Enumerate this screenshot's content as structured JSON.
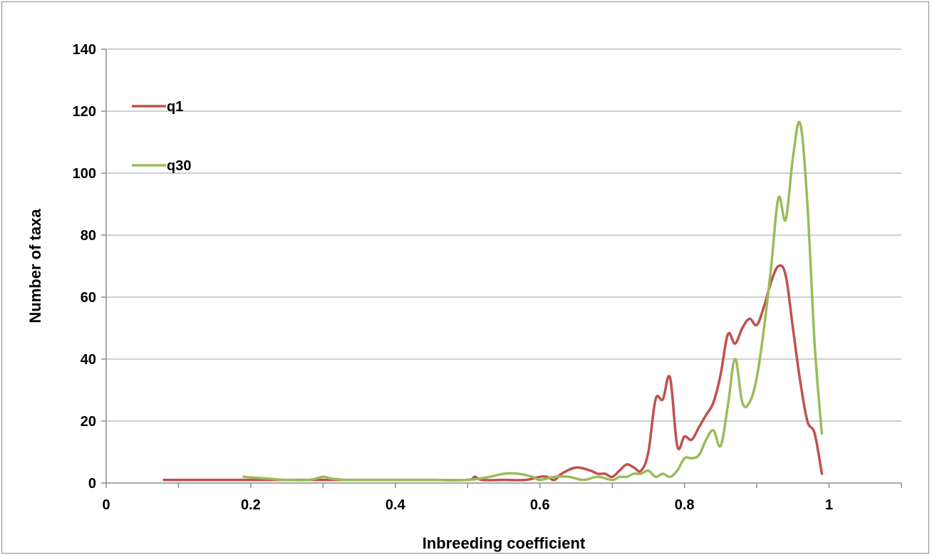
{
  "chart_data": {
    "type": "line",
    "title": "",
    "xlabel": "Inbreeding coefficient",
    "ylabel": "Number of taxa",
    "xlim": [
      0,
      1.1
    ],
    "ylim": [
      0,
      140
    ],
    "x_ticks": [
      0,
      0.2,
      0.4,
      0.6,
      0.8,
      1
    ],
    "x_tick_labels": [
      "0",
      "0.2",
      "0.4",
      "0.6",
      "0.8",
      "1"
    ],
    "y_ticks": [
      0,
      20,
      40,
      60,
      80,
      100,
      120,
      140
    ],
    "y_tick_labels": [
      "0",
      "20",
      "40",
      "60",
      "80",
      "100",
      "120",
      "140"
    ],
    "grid": "horizontal",
    "legend_position": "top-left",
    "series": [
      {
        "name": "q1",
        "color": "#c0504d",
        "x": [
          0.08,
          0.1,
          0.15,
          0.2,
          0.25,
          0.3,
          0.32,
          0.35,
          0.4,
          0.45,
          0.5,
          0.51,
          0.52,
          0.55,
          0.58,
          0.6,
          0.61,
          0.62,
          0.63,
          0.65,
          0.67,
          0.68,
          0.69,
          0.7,
          0.71,
          0.72,
          0.73,
          0.74,
          0.75,
          0.76,
          0.77,
          0.78,
          0.79,
          0.8,
          0.81,
          0.82,
          0.83,
          0.84,
          0.85,
          0.86,
          0.87,
          0.88,
          0.89,
          0.9,
          0.91,
          0.92,
          0.93,
          0.94,
          0.95,
          0.96,
          0.97,
          0.98,
          0.99
        ],
        "y": [
          1,
          1,
          1,
          1,
          1,
          1,
          1,
          1,
          1,
          1,
          1,
          2,
          1,
          1,
          1,
          2,
          2,
          1,
          3,
          5,
          4,
          3,
          3,
          2,
          4,
          6,
          5,
          4,
          10,
          27,
          27,
          34,
          12,
          15,
          14,
          18,
          22,
          26,
          35,
          48,
          45,
          50,
          53,
          51,
          57,
          65,
          70,
          67,
          50,
          33,
          20,
          16,
          3
        ]
      },
      {
        "name": "q30",
        "color": "#9bbb59",
        "x": [
          0.19,
          0.22,
          0.25,
          0.28,
          0.3,
          0.31,
          0.33,
          0.35,
          0.4,
          0.45,
          0.5,
          0.53,
          0.55,
          0.57,
          0.59,
          0.6,
          0.62,
          0.64,
          0.66,
          0.68,
          0.7,
          0.71,
          0.72,
          0.73,
          0.74,
          0.75,
          0.76,
          0.77,
          0.78,
          0.79,
          0.8,
          0.81,
          0.82,
          0.83,
          0.84,
          0.85,
          0.86,
          0.87,
          0.88,
          0.89,
          0.9,
          0.91,
          0.92,
          0.93,
          0.94,
          0.95,
          0.96,
          0.97,
          0.98,
          0.99
        ],
        "y": [
          2,
          1.5,
          1,
          1,
          2,
          1.5,
          1,
          1,
          1,
          1,
          1,
          2,
          3,
          3,
          2,
          1,
          2,
          2,
          1,
          2,
          1,
          2,
          2,
          3,
          3,
          4,
          2,
          3,
          2,
          4,
          8,
          8,
          9,
          14,
          17,
          12,
          25,
          40,
          26,
          26,
          34,
          50,
          70,
          92,
          85,
          105,
          116,
          90,
          45,
          16
        ]
      }
    ]
  }
}
